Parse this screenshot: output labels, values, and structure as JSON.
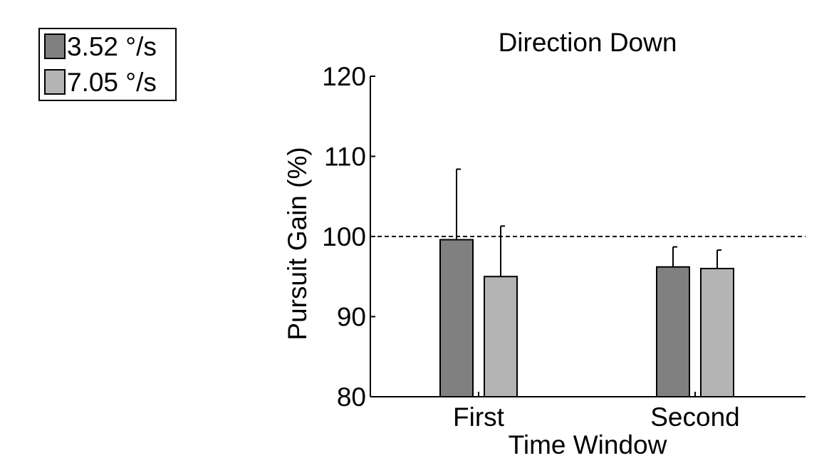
{
  "chart_data": {
    "type": "bar",
    "title": "Direction Down",
    "xlabel": "Time Window",
    "ylabel": "Pursuit Gain (%)",
    "ylim": [
      80,
      120
    ],
    "yticks": [
      "80",
      "90",
      "100",
      "110",
      "120"
    ],
    "categories": [
      "First",
      "Second"
    ],
    "series": [
      {
        "name": "3.52 °/s",
        "color": "#808080",
        "values": [
          99.6,
          96.2
        ],
        "error": [
          8.8,
          2.5
        ]
      },
      {
        "name": "7.05 °/s",
        "color": "#b4b4b4",
        "values": [
          95.0,
          96.0
        ],
        "error": [
          6.3,
          2.3
        ]
      }
    ],
    "reference_line": {
      "y": 100,
      "style": "dashed"
    },
    "legend_position": "top-left, outside plot",
    "grid": false
  }
}
